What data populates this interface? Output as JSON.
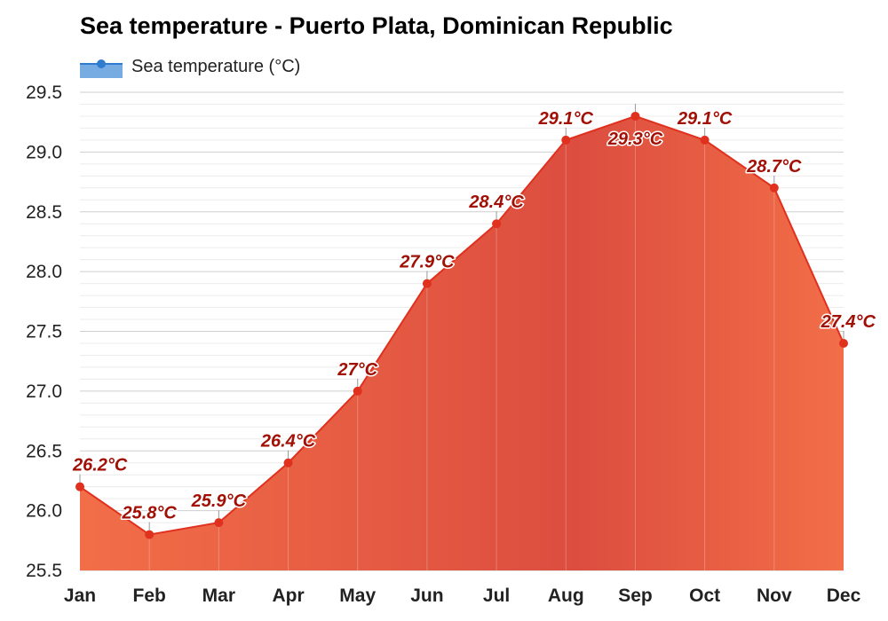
{
  "chart_data": {
    "type": "area",
    "title": "Sea temperature - Puerto Plata, Dominican Republic",
    "legend": {
      "label": "Sea temperature (°C)",
      "placement": "top-left",
      "color": "#4a90d9"
    },
    "categories": [
      "Jan",
      "Feb",
      "Mar",
      "Apr",
      "May",
      "Jun",
      "Jul",
      "Aug",
      "Sep",
      "Oct",
      "Nov",
      "Dec"
    ],
    "series": [
      {
        "name": "Sea temperature (°C)",
        "values": [
          26.2,
          25.8,
          25.9,
          26.4,
          27.0,
          27.9,
          28.4,
          29.1,
          29.3,
          29.1,
          28.7,
          27.4
        ],
        "labels": [
          "26.2°C",
          "25.8°C",
          "25.9°C",
          "26.4°C",
          "27°C",
          "27.9°C",
          "28.4°C",
          "29.1°C",
          "29.3°C",
          "29.1°C",
          "28.7°C",
          "27.4°C"
        ],
        "color": "#e0301e"
      }
    ],
    "ylim": [
      25.5,
      29.5
    ],
    "yticks": [
      "25.5",
      "26.0",
      "26.5",
      "27.0",
      "27.5",
      "28.0",
      "28.5",
      "29.0",
      "29.5"
    ],
    "grid": true,
    "fill_colors": {
      "warm": "#f26e48",
      "hot": "#dc4d3f"
    }
  }
}
